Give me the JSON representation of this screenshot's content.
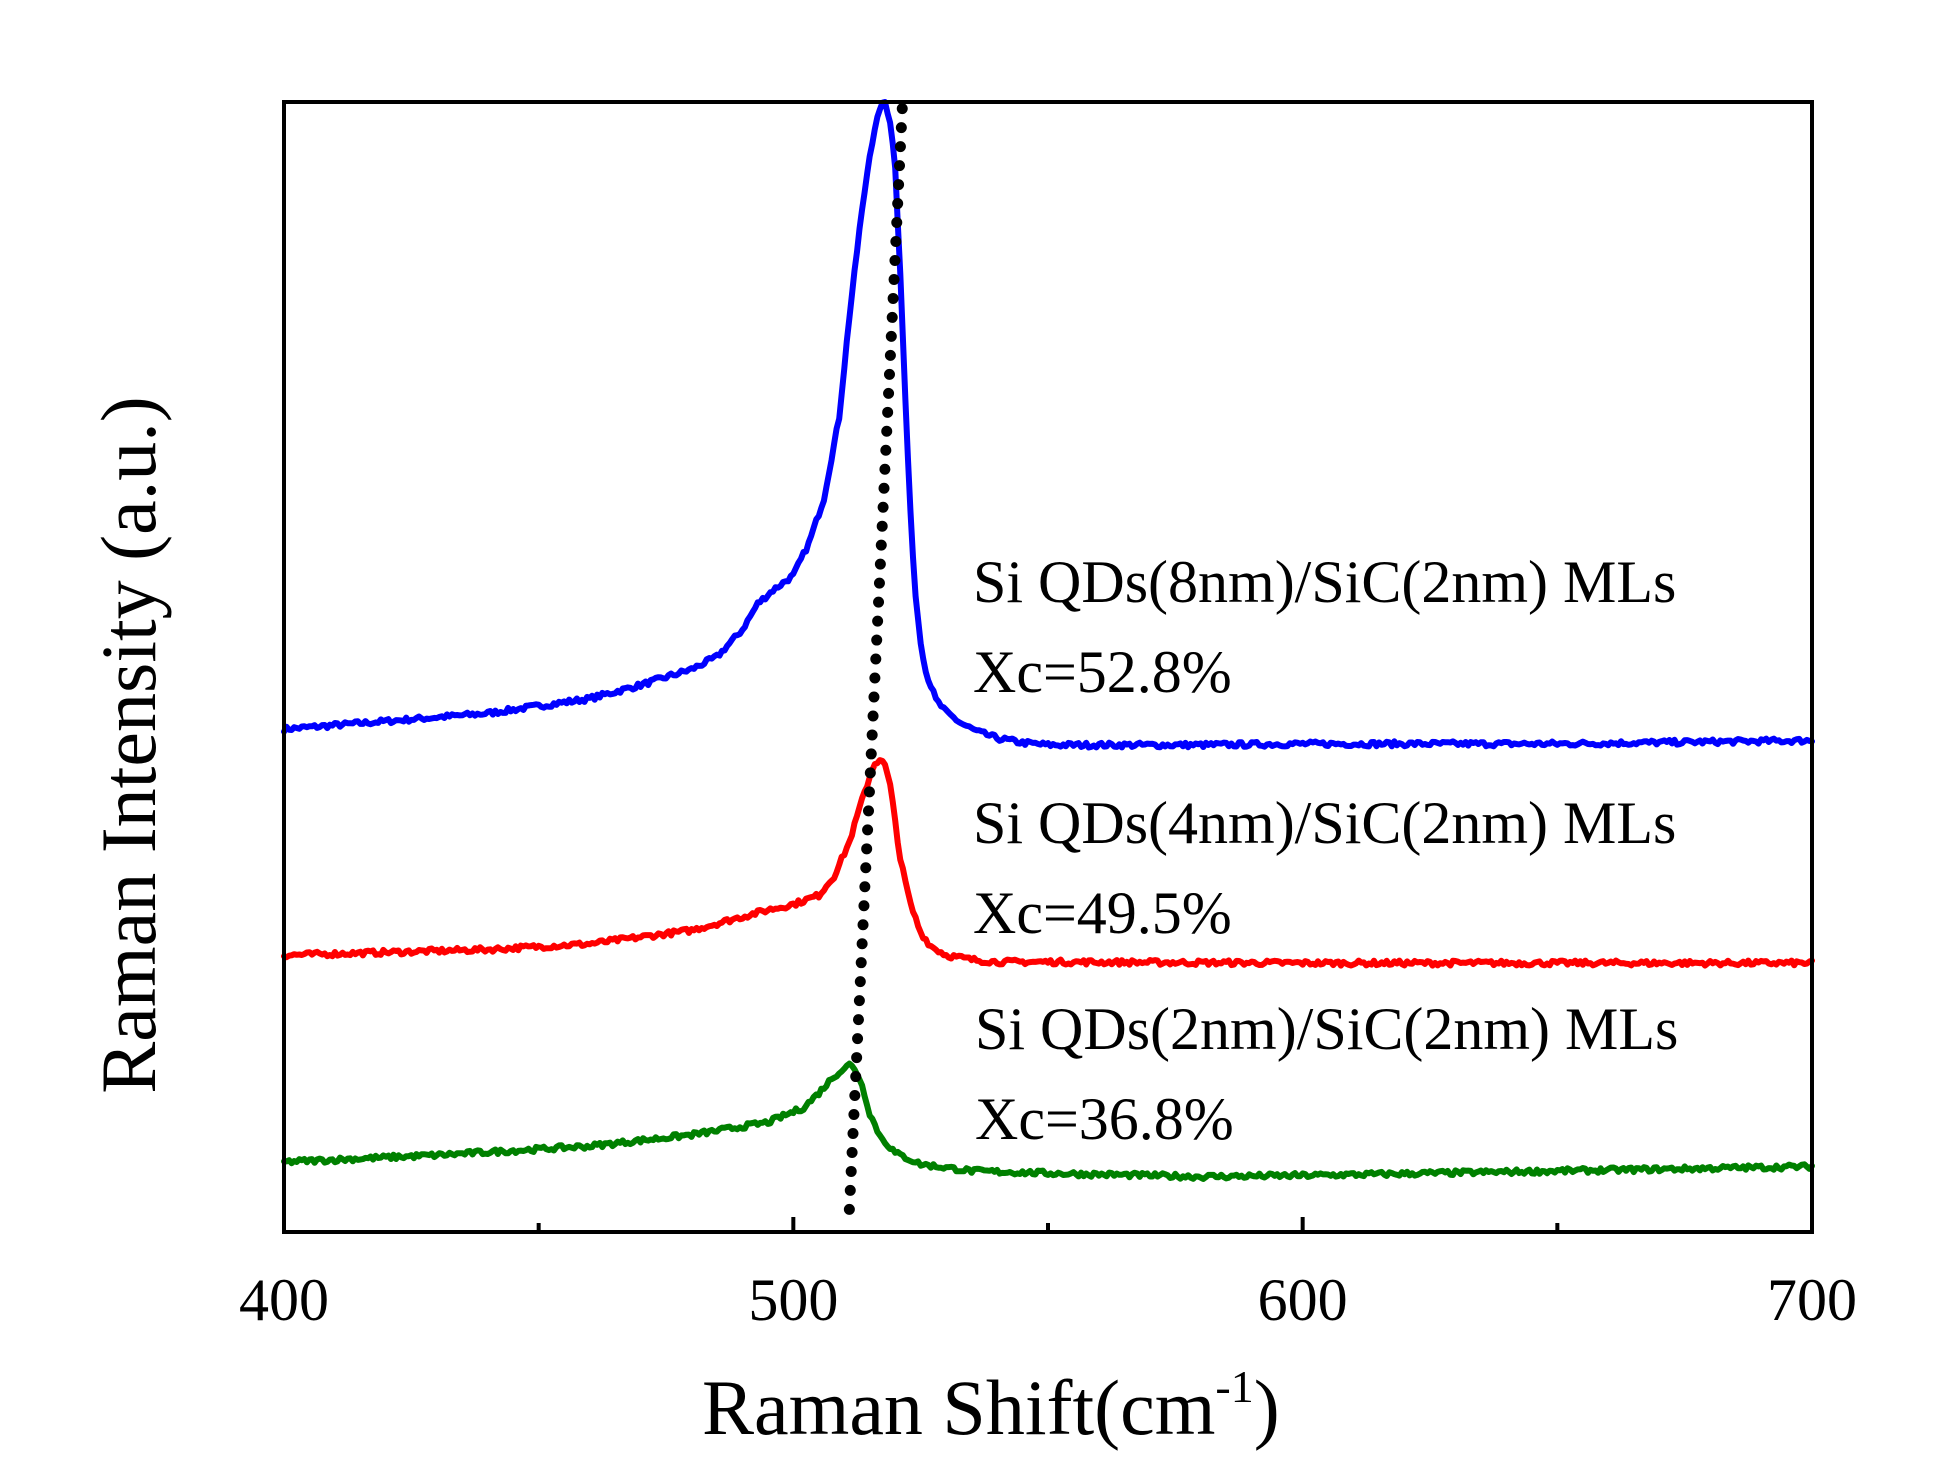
{
  "chart_data": {
    "type": "line",
    "title": "",
    "xlabel": "Raman Shift(cm",
    "xlabel_superscript": "-1",
    "xlabel_suffix": ")",
    "ylabel": "Raman Intensity (a.u.)",
    "xlim": [
      400,
      700
    ],
    "ylim": [
      0,
      100
    ],
    "x_ticks": [
      400,
      500,
      600,
      700
    ],
    "x_minor_ticks": [
      450,
      550,
      650
    ],
    "y_ticks_shown": false,
    "grid": false,
    "legend": "none",
    "series": [
      {
        "name": "Si QDs(8nm)/SiC(2nm) MLs",
        "xc_label": "Xc=52.8%",
        "color": "#0000ff",
        "x": [
          400,
          420,
          440,
          460,
          470,
          480,
          485,
          490,
          493,
          496,
          500,
          503,
          506,
          509,
          511,
          513,
          515,
          517,
          518,
          519,
          520,
          521,
          522,
          523,
          524,
          525,
          526,
          528,
          530,
          533,
          536,
          540,
          545,
          550,
          560,
          580,
          600,
          650,
          700
        ],
        "y": [
          44.5,
          45.2,
          45.9,
          47.2,
          48.4,
          49.8,
          50.9,
          53.3,
          55.6,
          56.8,
          58.1,
          60.9,
          64.9,
          72.1,
          81.0,
          88.7,
          95.4,
          99.5,
          100.0,
          98.3,
          94.3,
          84.9,
          73.6,
          63.5,
          56.3,
          52.3,
          49.6,
          47.1,
          46.0,
          45.0,
          44.3,
          43.7,
          43.3,
          43.1,
          43.1,
          43.1,
          43.2,
          43.2,
          43.5
        ]
      },
      {
        "name": "Si QDs(4nm)/SiC(2nm) MLs",
        "xc_label": "Xc=49.5%",
        "color": "#ff0000",
        "x": [
          400,
          440,
          460,
          480,
          490,
          495,
          500,
          505,
          508,
          511,
          513,
          515,
          516,
          517,
          518,
          519,
          520,
          521,
          523,
          525,
          527,
          530,
          535,
          540,
          550,
          600,
          650,
          700
        ],
        "y": [
          24.5,
          25.0,
          25.5,
          26.7,
          27.9,
          28.5,
          29.0,
          29.8,
          31.5,
          34.5,
          37.5,
          40.3,
          41.5,
          41.8,
          41.3,
          39.5,
          36.4,
          33.0,
          29.0,
          26.5,
          25.3,
          24.5,
          24.1,
          23.9,
          23.9,
          23.8,
          23.8,
          23.8
        ]
      },
      {
        "name": "Si QDs(2nm)/SiC(2nm) MLs",
        "xc_label": "Xc=36.8%",
        "color": "#008000",
        "x": [
          400,
          430,
          460,
          480,
          495,
          502,
          505,
          508,
          510,
          511,
          512,
          513,
          514,
          515,
          517,
          520,
          525,
          535,
          550,
          580,
          600,
          650,
          700
        ],
        "y": [
          6.2,
          6.8,
          7.6,
          8.6,
          9.7,
          11.0,
          12.3,
          13.8,
          14.5,
          14.8,
          14.5,
          13.6,
          12.2,
          10.5,
          8.5,
          7.0,
          6.0,
          5.4,
          5.2,
          4.9,
          5.0,
          5.4,
          5.8
        ]
      }
    ],
    "guide_line": {
      "style": "dotted",
      "color": "#000000",
      "from": [
        511,
        2
      ],
      "to": [
        521.5,
        100.5
      ]
    }
  }
}
